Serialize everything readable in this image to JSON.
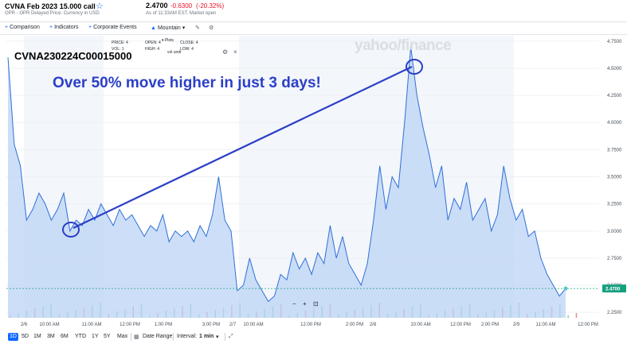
{
  "header": {
    "title": "CVNA Feb 2023 15.000 call",
    "subtitle": "OPR - OPR Delayed Price. Currency in USD",
    "price": "2.4700",
    "change": "-0.6300",
    "change_pct": "(-20.32%)",
    "as_of": "As of 11:33AM EST. Market open"
  },
  "toolbar": {
    "comparison": "Comparison",
    "indicators": "Indicators",
    "corporate_events": "Corporate Events",
    "chart_style": "Mountain"
  },
  "legend": {
    "price_label": "PRICE: 4",
    "vol_label": "VOL: 1",
    "open_label": "OPEN: 4",
    "high_label": "HIGH: 4",
    "close_label": "CLOSE: 4",
    "low_label": "LOW: 4",
    "plots": "Plots",
    "vol_undr": "vol undr"
  },
  "overlay": {
    "symbol": "CVNA230224C00015000",
    "annotation": "Over 50% move higher in just 3 days!",
    "watermark": "yahoo/finance"
  },
  "zoom": {
    "minus": "−",
    "plus": "+",
    "fit": "⊡"
  },
  "bottom": {
    "ranges": [
      "1D",
      "5D",
      "1M",
      "3M",
      "6M",
      "YTD",
      "1Y",
      "5Y",
      "Max"
    ],
    "active_range": "1D",
    "date_range": "Date Range",
    "interval_label": "Interval:",
    "interval_value": "1 min"
  },
  "colors": {
    "accent": "#0f69ff",
    "line": "#2e6fd9",
    "fill": "#bcd4f6",
    "annotation": "#2b3fc7",
    "negative": "#eb0f29",
    "last_price": "#16a080"
  },
  "chart_data": {
    "type": "area",
    "y_ticks": [
      "4.7500",
      "4.5000",
      "4.2500",
      "4.0000",
      "3.7500",
      "3.5000",
      "3.2500",
      "3.0000",
      "2.7500",
      "2.5000",
      "2.2500"
    ],
    "ylim": [
      2.2,
      4.8
    ],
    "last_price": "2.4700",
    "x_ticks": [
      "2/6",
      "10:00 AM",
      "11:00 AM",
      "12:00 PM",
      "1:00 PM",
      "3:00 PM",
      "2/7",
      "10:00 AM",
      "12:00 PM",
      "2:00 PM",
      "2/8",
      "10:00 AM",
      "12:00 PM",
      "2:00 PM",
      "2/9",
      "11:00 AM",
      "12:00 PM"
    ],
    "series": [
      {
        "values": [
          4.6,
          3.8,
          3.6,
          3.1,
          3.2,
          3.35,
          3.25,
          3.1,
          3.2,
          3.35,
          3.0,
          3.1,
          3.05,
          3.2,
          3.1,
          3.25,
          3.15,
          3.05,
          3.2,
          3.1,
          3.15,
          3.05,
          2.95,
          3.05,
          3.0,
          3.15,
          2.9,
          3.0,
          2.95,
          3.0,
          2.9,
          3.05,
          2.95,
          3.15,
          3.5,
          3.1,
          3.0,
          2.45,
          2.5,
          2.75,
          2.55,
          2.45,
          2.35,
          2.4,
          2.6,
          2.55,
          2.8,
          2.65,
          2.75,
          2.6,
          2.8,
          2.7,
          3.05,
          2.75,
          2.95,
          2.7,
          2.6,
          2.5,
          2.7,
          3.1,
          3.6,
          3.2,
          3.5,
          3.4,
          4.0,
          4.7,
          4.25,
          3.95,
          3.7,
          3.4,
          3.6,
          3.1,
          3.3,
          3.2,
          3.45,
          3.1,
          3.2,
          3.3,
          3.0,
          3.15,
          3.6,
          3.3,
          3.1,
          3.2,
          2.95,
          3.0,
          2.75,
          2.6,
          2.5,
          2.4,
          2.47
        ]
      }
    ]
  }
}
